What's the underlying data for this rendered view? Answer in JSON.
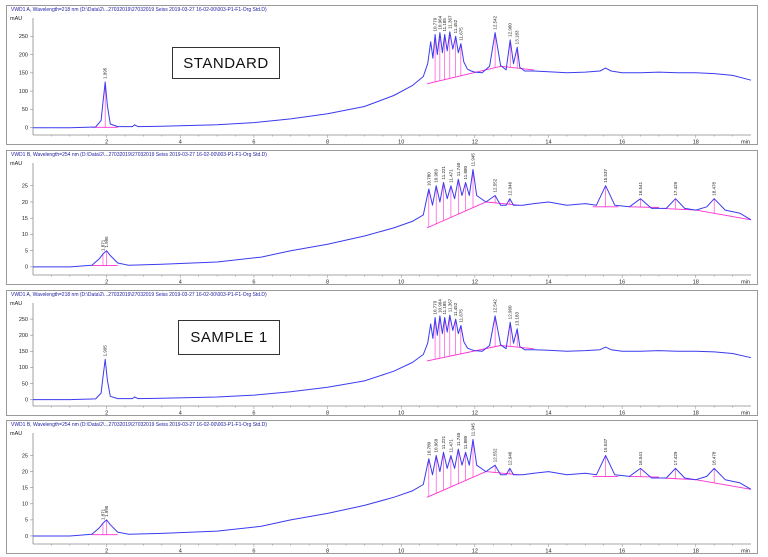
{
  "colors": {
    "trace": "#3b3bf0",
    "baseline": "#ff2fd0",
    "axis": "#8a8a8a",
    "header": "#1a1aa0",
    "text": "#222222"
  },
  "labels": {
    "standard": "STANDARD",
    "sample1": "SAMPLE 1"
  },
  "chart_data": [
    {
      "type": "line",
      "header": "VWD1 A, Wavelength=218 nm (D:\\Data\\2\\...27032019\\27032019 Seiss 2019-03-27 16-02-00\\003-P1-F1-Org Std.D)",
      "ylabel": "mAU",
      "xlabel": "min",
      "xlim": [
        0,
        19.5
      ],
      "ylim": [
        -20,
        300
      ],
      "xticks": [
        2,
        4,
        6,
        8,
        10,
        12,
        14,
        16,
        18
      ],
      "xtick_labels": [
        "2",
        "4",
        "6",
        "8",
        "10",
        "12",
        "14",
        "16",
        "18"
      ],
      "yticks": [
        0,
        50,
        100,
        150,
        200,
        250
      ],
      "ytick_labels": [
        "0",
        "50",
        "100",
        "150",
        "200",
        "250"
      ],
      "x": [
        0,
        1.0,
        1.7,
        1.85,
        1.9,
        1.96,
        2.02,
        2.1,
        2.3,
        2.7,
        2.76,
        2.85,
        3.5,
        5,
        6,
        7,
        8,
        9,
        9.8,
        10.3,
        10.6,
        10.72,
        10.8,
        10.86,
        10.92,
        10.98,
        11.05,
        11.12,
        11.18,
        11.25,
        11.32,
        11.4,
        11.48,
        11.55,
        11.62,
        11.7,
        11.8,
        11.9,
        12.0,
        12.2,
        12.4,
        12.55,
        12.7,
        12.85,
        12.96,
        13.05,
        13.15,
        13.22,
        13.35,
        13.6,
        14.0,
        14.5,
        15.0,
        15.4,
        15.55,
        15.7,
        16.0,
        16.5,
        17.0,
        17.5,
        18.0,
        18.5,
        19.0,
        19.5
      ],
      "y": [
        0,
        0,
        2,
        20,
        70,
        125,
        60,
        10,
        3,
        3,
        8,
        3,
        4,
        8,
        14,
        24,
        38,
        58,
        88,
        115,
        140,
        175,
        235,
        190,
        255,
        200,
        260,
        205,
        255,
        210,
        262,
        215,
        250,
        205,
        230,
        180,
        160,
        155,
        152,
        150,
        168,
        260,
        170,
        158,
        240,
        175,
        220,
        165,
        155,
        155,
        153,
        150,
        152,
        155,
        163,
        155,
        150,
        150,
        152,
        150,
        150,
        148,
        143,
        130
      ],
      "peaks": [
        {
          "rt": "1.995",
          "x": 1.96,
          "y": 125
        },
        {
          "rt": "10.779",
          "x": 10.92,
          "y": 255
        },
        {
          "rt": "10.964",
          "x": 11.05,
          "y": 260
        },
        {
          "rt": "11.185",
          "x": 11.18,
          "y": 255
        },
        {
          "rt": "11.367",
          "x": 11.32,
          "y": 262
        },
        {
          "rt": "11.452",
          "x": 11.48,
          "y": 250
        },
        {
          "rt": "11.675",
          "x": 11.62,
          "y": 230
        },
        {
          "rt": "12.542",
          "x": 12.55,
          "y": 260
        },
        {
          "rt": "12.960",
          "x": 12.96,
          "y": 240
        },
        {
          "rt": "13.183",
          "x": 13.15,
          "y": 220
        }
      ],
      "baselines": [
        {
          "x": [
            1.6,
            2.3
          ],
          "y": [
            1,
            1
          ]
        },
        {
          "x": [
            10.7,
            12.7,
            13.6
          ],
          "y": [
            120,
            168,
            158
          ]
        }
      ]
    },
    {
      "type": "line",
      "header": "VWD1 B, Wavelength=254 nm (D:\\Data\\2\\...27032019\\27032019 Seiss 2019-03-27 16-02-00\\003-P1-F1-Org Std.D)",
      "ylabel": "mAU",
      "xlabel": "min",
      "xlim": [
        0,
        19.5
      ],
      "ylim": [
        -2.5,
        32
      ],
      "xticks": [
        2,
        4,
        6,
        8,
        10,
        12,
        14,
        16,
        18
      ],
      "xtick_labels": [
        "2",
        "4",
        "6",
        "8",
        "10",
        "12",
        "14",
        "16",
        "18"
      ],
      "yticks": [
        0,
        5,
        10,
        15,
        20,
        25
      ],
      "ytick_labels": [
        "0",
        "5",
        "10",
        "15",
        "20",
        "25"
      ],
      "x": [
        0,
        1.0,
        1.6,
        1.8,
        1.9,
        2.0,
        2.1,
        2.3,
        2.6,
        3.5,
        5,
        6.2,
        7,
        8,
        9,
        9.8,
        10.3,
        10.6,
        10.75,
        10.85,
        10.95,
        11.05,
        11.15,
        11.25,
        11.35,
        11.45,
        11.55,
        11.65,
        11.75,
        11.85,
        11.95,
        12.05,
        12.3,
        12.55,
        12.7,
        12.85,
        12.95,
        13.05,
        13.3,
        13.6,
        14.0,
        14.5,
        15.0,
        15.3,
        15.55,
        15.8,
        16.2,
        16.5,
        16.8,
        17.2,
        17.45,
        17.7,
        18.0,
        18.3,
        18.5,
        18.8,
        19.2,
        19.5
      ],
      "y": [
        0,
        0,
        0.5,
        2.5,
        4,
        5,
        3.5,
        1.2,
        0.5,
        0.8,
        1.5,
        3,
        5,
        7,
        9.5,
        12,
        14,
        16,
        24,
        19,
        25,
        20,
        26,
        21,
        25,
        21,
        27,
        22,
        26,
        22,
        30,
        22,
        20,
        22,
        19,
        19,
        21,
        19,
        19,
        19.5,
        20,
        19,
        19.5,
        19,
        25,
        19,
        18.5,
        21,
        18,
        18,
        21,
        18,
        17.5,
        18.5,
        21,
        17.5,
        16.5,
        14.5
      ],
      "peaks": [
        {
          "rt": "1.871",
          "x": 1.9,
          "y": 4
        },
        {
          "rt": "1.995",
          "x": 2.0,
          "y": 5
        },
        {
          "rt": "10.780",
          "x": 10.75,
          "y": 24
        },
        {
          "rt": "10.969",
          "x": 10.95,
          "y": 25
        },
        {
          "rt": "11.221",
          "x": 11.15,
          "y": 26
        },
        {
          "rt": "11.471",
          "x": 11.35,
          "y": 25
        },
        {
          "rt": "11.740",
          "x": 11.55,
          "y": 27
        },
        {
          "rt": "11.880",
          "x": 11.75,
          "y": 26
        },
        {
          "rt": "11.945",
          "x": 11.95,
          "y": 30
        },
        {
          "rt": "12.552",
          "x": 12.55,
          "y": 22
        },
        {
          "rt": "12.946",
          "x": 12.95,
          "y": 21
        },
        {
          "rt": "15.537",
          "x": 15.55,
          "y": 25
        },
        {
          "rt": "16.541",
          "x": 16.5,
          "y": 21
        },
        {
          "rt": "17.429",
          "x": 17.45,
          "y": 21
        },
        {
          "rt": "18.478",
          "x": 18.5,
          "y": 21
        }
      ],
      "baselines": [
        {
          "x": [
            1.6,
            2.3
          ],
          "y": [
            0.4,
            0.4
          ]
        },
        {
          "x": [
            10.7,
            12.3,
            13.2
          ],
          "y": [
            12,
            20,
            19
          ]
        },
        {
          "x": [
            15.2,
            15.9
          ],
          "y": [
            18.5,
            18.5
          ]
        },
        {
          "x": [
            16.2,
            17.0
          ],
          "y": [
            18.5,
            18.3
          ]
        },
        {
          "x": [
            17.1,
            18.0,
            19.5
          ],
          "y": [
            18,
            17.5,
            14.5
          ]
        }
      ]
    },
    {
      "type": "line",
      "header": "VWD1 A, Wavelength=218 nm (D:\\Data\\2\\...27032019\\27032019 Seiss 2019-03-27 16-02-00\\003-P1-F1-Org Std.D)",
      "ylabel": "mAU",
      "xlabel": "min",
      "xlim": [
        0,
        19.5
      ],
      "ylim": [
        -20,
        300
      ],
      "xticks": [
        2,
        4,
        6,
        8,
        10,
        12,
        14,
        16,
        18
      ],
      "xtick_labels": [
        "2",
        "4",
        "6",
        "8",
        "10",
        "12",
        "14",
        "16",
        "18"
      ],
      "yticks": [
        0,
        50,
        100,
        150,
        200,
        250
      ],
      "ytick_labels": [
        "0",
        "50",
        "100",
        "150",
        "200",
        "250"
      ],
      "x": [
        0,
        1.0,
        1.7,
        1.85,
        1.9,
        1.96,
        2.02,
        2.1,
        2.3,
        2.7,
        2.76,
        2.85,
        3.5,
        5,
        6,
        7,
        8,
        9,
        9.8,
        10.3,
        10.6,
        10.72,
        10.8,
        10.86,
        10.92,
        10.98,
        11.05,
        11.12,
        11.18,
        11.25,
        11.32,
        11.4,
        11.48,
        11.55,
        11.62,
        11.7,
        11.8,
        11.9,
        12.0,
        12.2,
        12.4,
        12.55,
        12.7,
        12.85,
        12.96,
        13.05,
        13.15,
        13.22,
        13.35,
        13.6,
        14.0,
        14.5,
        15.0,
        15.4,
        15.55,
        15.7,
        16.0,
        16.5,
        17.0,
        17.5,
        18.0,
        18.5,
        19.0,
        19.5
      ],
      "y": [
        0,
        0,
        2,
        20,
        70,
        125,
        60,
        10,
        3,
        3,
        8,
        3,
        4,
        8,
        14,
        24,
        38,
        58,
        88,
        115,
        140,
        175,
        235,
        190,
        255,
        200,
        260,
        205,
        255,
        210,
        262,
        215,
        250,
        205,
        230,
        180,
        160,
        155,
        152,
        150,
        168,
        260,
        170,
        158,
        240,
        175,
        220,
        165,
        155,
        155,
        153,
        150,
        152,
        155,
        163,
        155,
        150,
        150,
        152,
        150,
        150,
        148,
        143,
        130
      ],
      "peaks": [
        {
          "rt": "1.995",
          "x": 1.96,
          "y": 125
        },
        {
          "rt": "10.779",
          "x": 10.92,
          "y": 255
        },
        {
          "rt": "10.964",
          "x": 11.05,
          "y": 260
        },
        {
          "rt": "11.185",
          "x": 11.18,
          "y": 255
        },
        {
          "rt": "11.367",
          "x": 11.32,
          "y": 262
        },
        {
          "rt": "11.452",
          "x": 11.48,
          "y": 250
        },
        {
          "rt": "11.675",
          "x": 11.62,
          "y": 230
        },
        {
          "rt": "12.542",
          "x": 12.55,
          "y": 260
        },
        {
          "rt": "12.960",
          "x": 12.96,
          "y": 240
        },
        {
          "rt": "13.183",
          "x": 13.15,
          "y": 220
        }
      ],
      "baselines": [
        {
          "x": [
            10.7,
            12.7,
            13.6
          ],
          "y": [
            120,
            168,
            158
          ]
        }
      ]
    },
    {
      "type": "line",
      "header": "VWD1 B, Wavelength=254 nm (D:\\Data\\2\\...27032019\\27032019 Seiss 2019-03-27 16-02-00\\003-P1-F1-Org Std.D)",
      "ylabel": "mAU",
      "xlabel": "min",
      "xlim": [
        0,
        19.5
      ],
      "ylim": [
        -2.5,
        32
      ],
      "xticks": [
        2,
        4,
        6,
        8,
        10,
        12,
        14,
        16,
        18
      ],
      "xtick_labels": [
        "2",
        "4",
        "6",
        "8",
        "10",
        "12",
        "14",
        "16",
        "18"
      ],
      "yticks": [
        0,
        5,
        10,
        15,
        20,
        25
      ],
      "ytick_labels": [
        "0",
        "5",
        "10",
        "15",
        "20",
        "25"
      ],
      "x": [
        0,
        1.0,
        1.6,
        1.8,
        1.9,
        2.0,
        2.1,
        2.3,
        2.6,
        3.5,
        5,
        6.2,
        7,
        8,
        9,
        9.8,
        10.3,
        10.6,
        10.75,
        10.85,
        10.95,
        11.05,
        11.15,
        11.25,
        11.35,
        11.45,
        11.55,
        11.65,
        11.75,
        11.85,
        11.95,
        12.05,
        12.3,
        12.55,
        12.7,
        12.85,
        12.95,
        13.05,
        13.3,
        13.6,
        14.0,
        14.5,
        15.0,
        15.3,
        15.55,
        15.8,
        16.2,
        16.5,
        16.8,
        17.2,
        17.45,
        17.7,
        18.0,
        18.3,
        18.5,
        18.8,
        19.2,
        19.5
      ],
      "y": [
        0,
        0,
        0.5,
        2.5,
        4,
        5,
        3.5,
        1.2,
        0.5,
        0.8,
        1.5,
        3,
        5,
        7,
        9.5,
        12,
        14,
        16,
        24,
        19,
        25,
        20,
        26,
        21,
        25,
        21,
        27,
        22,
        26,
        22,
        30,
        22,
        20,
        22,
        19,
        19,
        21,
        19,
        19,
        19.5,
        20,
        19,
        19.5,
        19,
        25,
        19,
        18.5,
        21,
        18,
        18,
        21,
        18,
        17.5,
        18.5,
        21,
        17.5,
        16.5,
        14.5
      ],
      "peaks": [
        {
          "rt": "1.871",
          "x": 1.9,
          "y": 4
        },
        {
          "rt": "1.995",
          "x": 2.0,
          "y": 5
        },
        {
          "rt": "10.780",
          "x": 10.75,
          "y": 24
        },
        {
          "rt": "10.969",
          "x": 10.95,
          "y": 25
        },
        {
          "rt": "11.221",
          "x": 11.15,
          "y": 26
        },
        {
          "rt": "11.471",
          "x": 11.35,
          "y": 25
        },
        {
          "rt": "11.740",
          "x": 11.55,
          "y": 27
        },
        {
          "rt": "11.880",
          "x": 11.75,
          "y": 26
        },
        {
          "rt": "11.945",
          "x": 11.95,
          "y": 30
        },
        {
          "rt": "12.552",
          "x": 12.55,
          "y": 22
        },
        {
          "rt": "12.946",
          "x": 12.95,
          "y": 21
        },
        {
          "rt": "15.537",
          "x": 15.55,
          "y": 25
        },
        {
          "rt": "16.541",
          "x": 16.5,
          "y": 21
        },
        {
          "rt": "17.429",
          "x": 17.45,
          "y": 21
        },
        {
          "rt": "18.478",
          "x": 18.5,
          "y": 21
        }
      ],
      "baselines": [
        {
          "x": [
            1.6,
            2.3
          ],
          "y": [
            0.4,
            0.4
          ]
        },
        {
          "x": [
            10.7,
            12.3,
            13.2
          ],
          "y": [
            12,
            20,
            19
          ]
        },
        {
          "x": [
            15.2,
            15.9
          ],
          "y": [
            18.5,
            18.5
          ]
        },
        {
          "x": [
            16.2,
            17.0
          ],
          "y": [
            18.5,
            18.3
          ]
        },
        {
          "x": [
            17.1,
            18.0,
            19.5
          ],
          "y": [
            18,
            17.5,
            14.5
          ]
        }
      ]
    }
  ]
}
